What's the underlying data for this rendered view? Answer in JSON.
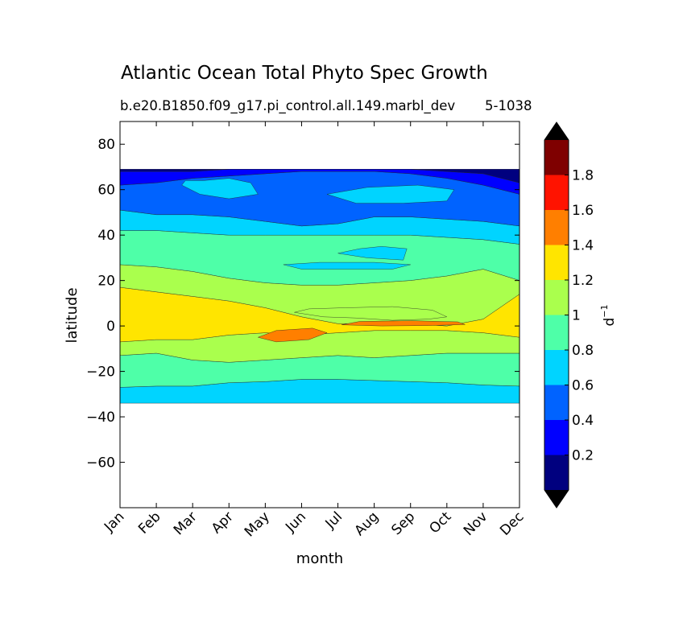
{
  "chart_data": {
    "type": "filled-contour",
    "title": "Atlantic Ocean Total Phyto Spec Growth",
    "subtitle": "b.e20.B1850.f09_g17.pi_control.all.149.marbl_dev",
    "subtitle_right": "5-1038",
    "xlabel": "month",
    "ylabel": "latitude",
    "x_categories": [
      "Jan",
      "Feb",
      "Mar",
      "Apr",
      "May",
      "Jun",
      "Jul",
      "Aug",
      "Sep",
      "Oct",
      "Nov",
      "Dec"
    ],
    "ylim": [
      -80,
      90
    ],
    "yticks": [
      -60,
      -40,
      -20,
      0,
      20,
      40,
      60,
      80
    ],
    "data_lat_range": [
      -34,
      69
    ],
    "colorbar": {
      "label": "d",
      "label_exponent": "−1",
      "levels": [
        0,
        0.2,
        0.4,
        0.6,
        0.8,
        1.0,
        1.2,
        1.4,
        1.6,
        1.8,
        2.0
      ],
      "tick_values": [
        0.2,
        0.4,
        0.6,
        0.8,
        1,
        1.2,
        1.4,
        1.6,
        1.8
      ],
      "tick_labels": [
        "0.2",
        "0.4",
        "0.6",
        "0.8",
        "1",
        "1.2",
        "1.4",
        "1.6",
        "1.8"
      ],
      "colors": [
        "#00007f",
        "#0000ff",
        "#0063ff",
        "#00d4ff",
        "#4effa8",
        "#aaff4d",
        "#ffe500",
        "#ff7f00",
        "#ff1300",
        "#7f0000"
      ],
      "extend_low_color": "#000000",
      "extend_high_color": "#000000"
    },
    "bands": [
      {
        "value": 0.75,
        "lat_low": [
          -34,
          -34,
          -34,
          -34,
          -34,
          -34,
          -34,
          -34,
          -34,
          -34,
          -34,
          -34
        ],
        "lat_high": [
          -27,
          -26.5,
          -26.5,
          -25,
          -24.5,
          -23.5,
          -23.5,
          -24,
          -24.5,
          -25,
          -26,
          -26.5
        ]
      },
      {
        "value": 0.95,
        "lat_low": [
          -27,
          -26.5,
          -26.5,
          -25,
          -24.5,
          -23.5,
          -23.5,
          -24,
          -24.5,
          -25,
          -26,
          -26.5
        ],
        "lat_high": [
          -13,
          -12,
          -15,
          -16,
          -15,
          -14,
          -13,
          -14,
          -13,
          -12,
          -12,
          -12
        ]
      },
      {
        "value": 1.1,
        "lat_low": [
          -13,
          -12,
          -15,
          -16,
          -15,
          -14,
          -13,
          -14,
          -13,
          -12,
          -12,
          -12
        ],
        "lat_high": [
          -7,
          -6,
          -6,
          -4,
          -3,
          -4,
          -3,
          -2,
          -2,
          -2,
          -3,
          -5
        ]
      },
      {
        "value": 1.3,
        "lat_low": [
          -7,
          -6,
          -6,
          -4,
          -3,
          -4,
          -3,
          -2,
          -2,
          -2,
          -3,
          -5
        ],
        "lat_high": [
          17,
          15,
          13,
          11,
          8,
          4,
          1,
          1,
          1,
          0,
          3,
          14
        ]
      },
      {
        "value": 1.1,
        "lat_low": [
          17,
          15,
          13,
          11,
          8,
          4,
          1,
          1,
          1,
          0,
          3,
          14
        ],
        "lat_high": [
          27,
          26,
          24,
          21,
          19,
          18,
          18,
          19,
          20,
          22,
          25,
          20
        ]
      },
      {
        "value": 0.95,
        "lat_low": [
          27,
          26,
          24,
          21,
          19,
          18,
          18,
          19,
          20,
          22,
          25,
          20
        ],
        "lat_high": [
          42,
          42,
          41,
          40,
          40,
          40,
          40,
          40,
          40,
          39,
          38,
          36
        ]
      },
      {
        "value": 0.75,
        "lat_low": [
          42,
          42,
          41,
          40,
          40,
          40,
          40,
          40,
          40,
          39,
          38,
          36
        ],
        "lat_high": [
          51,
          49,
          49,
          48,
          46,
          44,
          45,
          48,
          48,
          47,
          46,
          44
        ]
      },
      {
        "value": 0.55,
        "lat_low": [
          51,
          49,
          49,
          48,
          46,
          44,
          45,
          48,
          48,
          47,
          46,
          44
        ],
        "lat_high": [
          62,
          63,
          65,
          66,
          67,
          68,
          68,
          68,
          67,
          65,
          62,
          58
        ]
      },
      {
        "value": 0.35,
        "lat_low": [
          62,
          63,
          65,
          66,
          67,
          68,
          68,
          68,
          67,
          65,
          62,
          58
        ],
        "lat_high": [
          68,
          68,
          68,
          69,
          69,
          69,
          69,
          69,
          69,
          68,
          67,
          63
        ]
      },
      {
        "value": 0.1,
        "lat_low": [
          68,
          68,
          68,
          69,
          69,
          69,
          69,
          69,
          69,
          68,
          67,
          63
        ],
        "lat_high": [
          69,
          69,
          69,
          69,
          69,
          69,
          69,
          69,
          69,
          69,
          69,
          69
        ]
      }
    ],
    "patches": [
      {
        "value": 0.75,
        "x": [
          1.7,
          2.2,
          3.0,
          3.8,
          3.6,
          3.0,
          2.3,
          1.8
        ],
        "y": [
          62,
          58,
          56,
          58,
          63,
          65,
          64,
          64
        ]
      },
      {
        "value": 0.75,
        "x": [
          5.7,
          6.5,
          7.8,
          9.0,
          9.2,
          8.2,
          6.8
        ],
        "y": [
          58,
          54,
          54,
          55,
          60,
          62,
          61
        ]
      },
      {
        "value": 0.75,
        "x": [
          4.5,
          5.0,
          6.0,
          7.5,
          8.0,
          7.0,
          5.5
        ],
        "y": [
          27,
          25,
          25,
          25,
          27,
          28,
          28
        ]
      },
      {
        "value": 0.75,
        "x": [
          6.0,
          6.8,
          7.8,
          7.9,
          7.2,
          6.6
        ],
        "y": [
          32,
          30,
          29,
          34,
          35,
          34
        ]
      },
      {
        "value": 1.1,
        "x": [
          4.8,
          5.6,
          6.5,
          7.5,
          8.5,
          9.0,
          8.6,
          7.5,
          6.2,
          5.2
        ],
        "y": [
          6,
          4,
          3.5,
          2.5,
          3,
          4,
          7,
          8.5,
          8,
          7.5
        ]
      },
      {
        "value": 1.5,
        "x": [
          3.8,
          4.3,
          5.2,
          5.7,
          5.3,
          4.3
        ],
        "y": [
          -5,
          -7,
          -6,
          -3,
          -1,
          -2
        ]
      },
      {
        "value": 1.5,
        "x": [
          6.1,
          7.2,
          8.5,
          9.5,
          9.3,
          8.0,
          6.6
        ],
        "y": [
          0.5,
          0,
          0.2,
          0.6,
          1.8,
          2.3,
          2
        ]
      }
    ]
  }
}
